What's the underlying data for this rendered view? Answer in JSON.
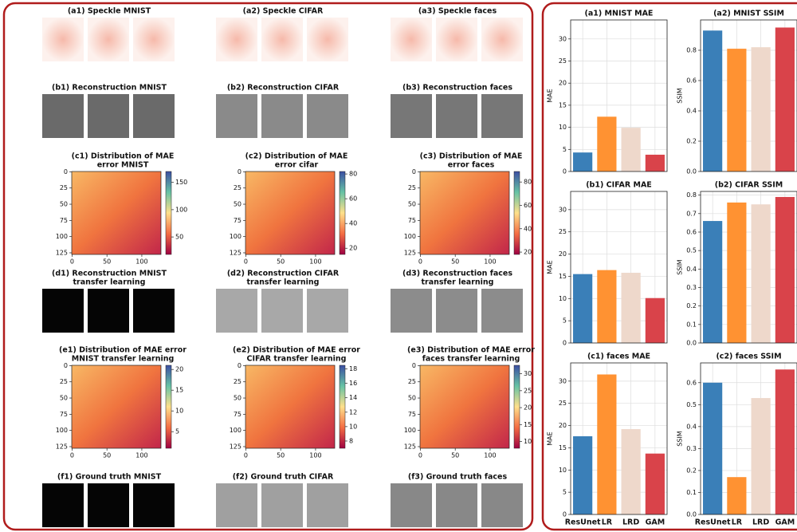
{
  "image_panels": [
    {
      "title": [
        "(a1) Speckle MNIST"
      ]
    },
    {
      "title": [
        "(a2) Speckle CIFAR"
      ]
    },
    {
      "title": [
        "(a3) Speckle faces"
      ]
    },
    {
      "title": [
        "(b1) Reconstruction MNIST"
      ]
    },
    {
      "title": [
        "(b2) Reconstruction CIFAR"
      ]
    },
    {
      "title": [
        "(b3) Reconstruction faces"
      ]
    },
    {
      "title": [
        "(d1) Reconstruction MNIST",
        "transfer learning"
      ]
    },
    {
      "title": [
        "(d2) Reconstruction CIFAR",
        "transfer learning"
      ]
    },
    {
      "title": [
        "(d3) Reconstruction faces",
        "transfer learning"
      ]
    },
    {
      "title": [
        "(f1) Ground truth MNIST"
      ]
    },
    {
      "title": [
        "(f2) Ground truth CIFAR"
      ]
    },
    {
      "title": [
        "(f3) Ground truth faces"
      ]
    }
  ],
  "heatmaps": [
    {
      "title": [
        "(c1) Distribution of MAE",
        "error MNIST"
      ],
      "xlim": [
        -0.5,
        127.5
      ],
      "xticks": [
        0,
        50,
        100
      ],
      "ylim": [
        127.5,
        -0.5
      ],
      "yticks": [
        0,
        25,
        50,
        75,
        100,
        125
      ],
      "colorbar": {
        "lim": [
          18,
          170
        ],
        "ticks": [
          50,
          100,
          150
        ]
      }
    },
    {
      "title": [
        "(c2) Distribution of MAE",
        "error cifar"
      ],
      "xlim": [
        -0.5,
        127.5
      ],
      "xticks": [
        0,
        50,
        100
      ],
      "ylim": [
        127.5,
        -0.5
      ],
      "yticks": [
        0,
        25,
        50,
        75,
        100,
        125
      ],
      "colorbar": {
        "lim": [
          15,
          82
        ],
        "ticks": [
          20,
          40,
          60,
          80
        ]
      }
    },
    {
      "title": [
        "(c3) Distribution of MAE",
        "error faces"
      ],
      "xlim": [
        -0.5,
        127.5
      ],
      "xticks": [
        0,
        50,
        100
      ],
      "ylim": [
        127.5,
        -0.5
      ],
      "yticks": [
        0,
        25,
        50,
        75,
        100,
        125
      ],
      "colorbar": {
        "lim": [
          18,
          89
        ],
        "ticks": [
          20,
          40,
          60,
          80
        ]
      }
    },
    {
      "title": [
        "(e1) Distribution of MAE error",
        "MNIST transfer learning"
      ],
      "xlim": [
        -0.5,
        127.5
      ],
      "xticks": [
        0,
        50,
        100
      ],
      "ylim": [
        127.5,
        -0.5
      ],
      "yticks": [
        0,
        25,
        50,
        75,
        100,
        125
      ],
      "colorbar": {
        "lim": [
          1,
          21
        ],
        "ticks": [
          5,
          10,
          15,
          20
        ]
      }
    },
    {
      "title": [
        "(e2) Distribution of MAE error",
        "CIFAR transfer learning"
      ],
      "xlim": [
        -0.5,
        127.5
      ],
      "xticks": [
        0,
        50,
        100
      ],
      "ylim": [
        127.5,
        -0.5
      ],
      "yticks": [
        0,
        25,
        50,
        75,
        100,
        125
      ],
      "colorbar": {
        "lim": [
          7,
          18.5
        ],
        "ticks": [
          8,
          10,
          12,
          14,
          16,
          18
        ]
      }
    },
    {
      "title": [
        "(e3) Distribution of MAE error",
        "faces transfer learning"
      ],
      "xlim": [
        -0.5,
        127.5
      ],
      "xticks": [
        0,
        50,
        100
      ],
      "ylim": [
        127.5,
        -0.5
      ],
      "yticks": [
        0,
        25,
        50,
        75,
        100,
        125
      ],
      "colorbar": {
        "lim": [
          8,
          32.5
        ],
        "ticks": [
          10,
          15,
          20,
          25,
          30
        ]
      }
    }
  ],
  "chart_data": [
    {
      "type": "bar",
      "title": "(a1) MNIST MAE",
      "ylabel": "MAE",
      "categories": [
        null,
        null,
        null,
        null
      ],
      "values": [
        4.3,
        12.4,
        9.9,
        3.8
      ],
      "colors": [
        "#3a7fb8",
        "#ff9232",
        "#eed8cb",
        "#d9434a"
      ],
      "ylim": [
        0,
        34.3
      ],
      "yticks": [
        0,
        5,
        10,
        15,
        20,
        25,
        30
      ],
      "grid": true
    },
    {
      "type": "bar",
      "title": "(a2) MNIST SSIM",
      "ylabel": "SSIM",
      "categories": [
        null,
        null,
        null,
        null
      ],
      "values": [
        0.93,
        0.81,
        0.82,
        0.95
      ],
      "colors": [
        "#3a7fb8",
        "#ff9232",
        "#eed8cb",
        "#d9434a"
      ],
      "ylim": [
        0,
        1.0
      ],
      "yticks": [
        {
          "value": 0,
          "label": "0.0"
        },
        0.2,
        0.4,
        0.6,
        0.8
      ],
      "grid": true
    },
    {
      "type": "bar",
      "title": "(b1) CIFAR MAE",
      "ylabel": "MAE",
      "categories": [
        null,
        null,
        null,
        null
      ],
      "values": [
        15.5,
        16.4,
        15.8,
        10.1
      ],
      "colors": [
        "#3a7fb8",
        "#ff9232",
        "#eed8cb",
        "#d9434a"
      ],
      "ylim": [
        0,
        34.1
      ],
      "yticks": [
        0,
        5,
        10,
        15,
        20,
        25,
        30
      ],
      "grid": true
    },
    {
      "type": "bar",
      "title": "(b2) CIFAR SSIM",
      "ylabel": "SSIM",
      "categories": [
        null,
        null,
        null,
        null
      ],
      "values": [
        0.66,
        0.76,
        0.75,
        0.79
      ],
      "colors": [
        "#3a7fb8",
        "#ff9232",
        "#eed8cb",
        "#d9434a"
      ],
      "ylim": [
        0,
        0.82
      ],
      "yticks": [
        {
          "value": 0,
          "label": "0.0"
        },
        0.1,
        0.2,
        0.3,
        0.4,
        0.5,
        0.6,
        0.7,
        0.8
      ],
      "grid": true
    },
    {
      "type": "bar",
      "title": "(c1) faces MAE",
      "ylabel": "MAE",
      "categories": [
        "ResUnet",
        "LR",
        "LRD",
        "GAM"
      ],
      "values": [
        17.6,
        31.5,
        19.2,
        13.7
      ],
      "colors": [
        "#3a7fb8",
        "#ff9232",
        "#eed8cb",
        "#d9434a"
      ],
      "ylim": [
        0,
        34.1
      ],
      "yticks": [
        0,
        5,
        10,
        15,
        20,
        25,
        30
      ],
      "grid": true
    },
    {
      "type": "bar",
      "title": "(c2) faces SSIM",
      "ylabel": "SSIM",
      "categories": [
        "ResUnet",
        "LR",
        "LRD",
        "GAM"
      ],
      "values": [
        0.6,
        0.17,
        0.53,
        0.66
      ],
      "colors": [
        "#3a7fb8",
        "#ff9232",
        "#eed8cb",
        "#d9434a"
      ],
      "ylim": [
        0,
        0.69
      ],
      "yticks": [
        {
          "value": 0,
          "label": "0.0"
        },
        0.1,
        0.2,
        0.3,
        0.4,
        0.5,
        0.6
      ],
      "grid": true
    }
  ]
}
